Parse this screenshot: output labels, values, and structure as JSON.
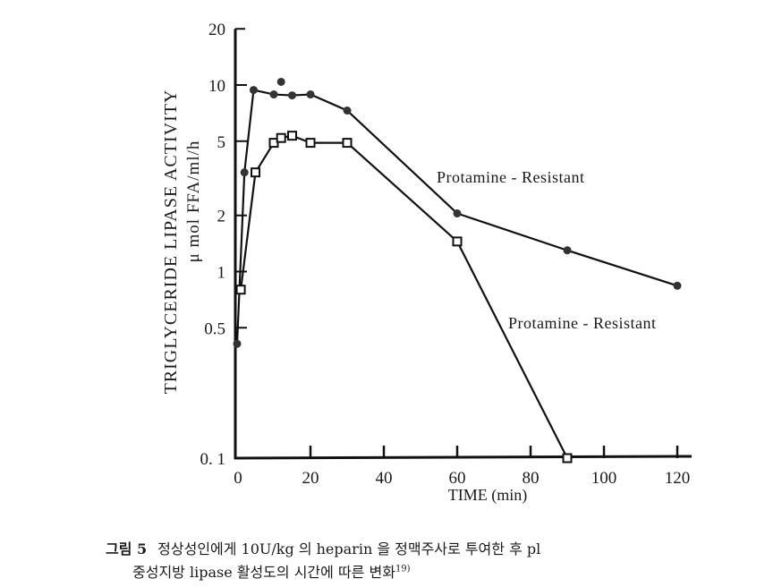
{
  "chart_data": {
    "type": "line",
    "title": "",
    "xlabel": "TIME (min)",
    "ylabel": "TRIGLYCERIDE LIPASE ACTIVITY",
    "ylabel_units": "μ mol FFA/ml/h",
    "yscale": "log",
    "xlim": [
      0,
      120
    ],
    "ylim": [
      0.1,
      20
    ],
    "x_ticks": [
      "0",
      "20",
      "40",
      "60",
      "80",
      "100",
      "120"
    ],
    "x_tick_values": [
      0,
      20,
      40,
      60,
      80,
      100,
      120
    ],
    "y_ticks": [
      "20",
      "10",
      "5",
      "2",
      "1",
      "0.5",
      "0. 1"
    ],
    "y_tick_values": [
      20,
      10,
      5,
      2,
      1,
      0.5,
      0.1
    ],
    "grid": false,
    "series": [
      {
        "name": "Protamine - Resistant",
        "marker": "filled-circle",
        "x": [
          0,
          2,
          4.5,
          10,
          12,
          15,
          20,
          30,
          60,
          90,
          120
        ],
        "values": [
          0.41,
          3.4,
          9.4,
          8.9,
          10.4,
          8.8,
          8.9,
          7.3,
          2.05,
          1.3,
          0.84
        ]
      },
      {
        "name": "Protamine - Resistant",
        "marker": "open-square",
        "x": [
          1,
          5,
          10,
          12,
          15,
          20,
          30,
          60,
          90
        ],
        "values": [
          0.8,
          3.4,
          4.9,
          5.2,
          5.35,
          4.9,
          4.9,
          1.45,
          0.1
        ]
      }
    ],
    "annotations": [
      "Protamine - Resistant",
      "Protamine - Resistant"
    ]
  },
  "caption": {
    "figure_number": "그림 5",
    "line1": "정상성인에게 10U/kg 의 heparin 을 정맥주사로 투여한 후 pl",
    "line2": "중성지방 lipase 활성도의 시간에 따른 변화",
    "reference": "19)"
  }
}
